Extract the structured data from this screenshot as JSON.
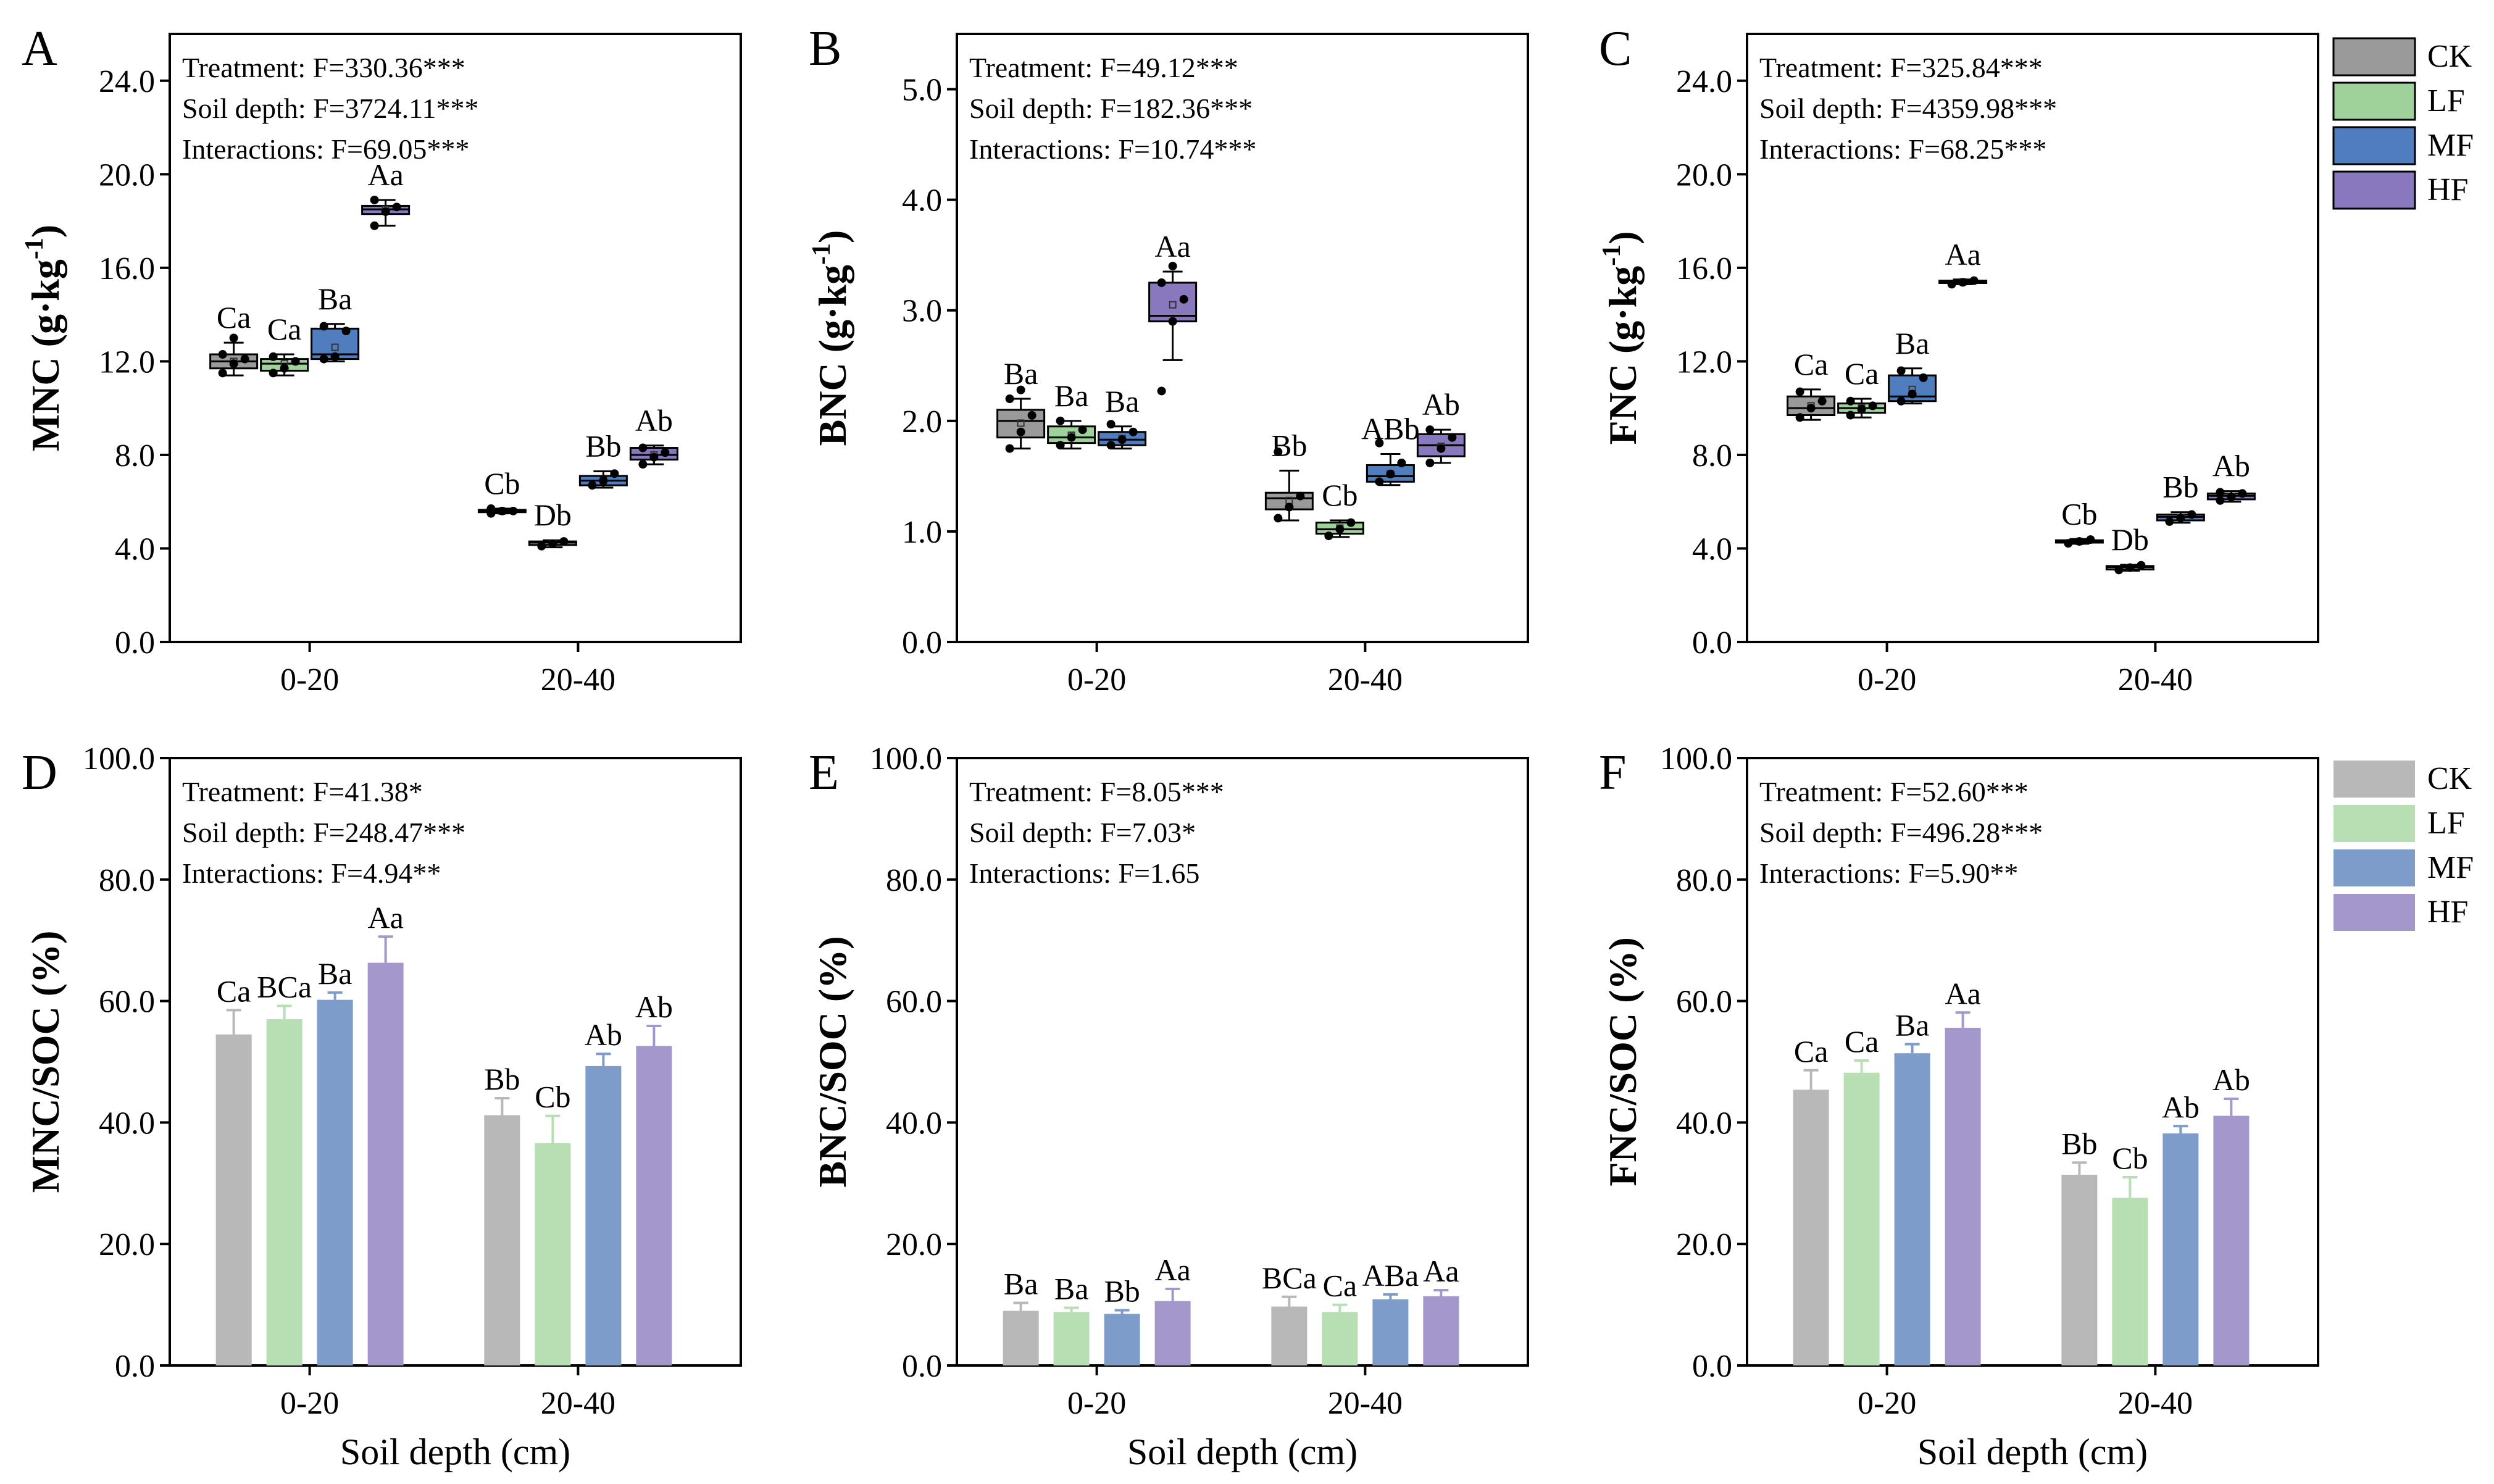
{
  "colors": {
    "box": {
      "CK": "#9a9a9a",
      "LF": "#9fd29a",
      "MF": "#4f7dbd",
      "HF": "#8a78bf"
    },
    "bar": {
      "CK": "#b8b8b8",
      "LF": "#b7dfb3",
      "MF": "#7e9cc9",
      "HF": "#a497cb"
    }
  },
  "legends": [
    {
      "kind": "box",
      "entries": [
        "CK",
        "LF",
        "MF",
        "HF"
      ]
    },
    {
      "kind": "bar",
      "entries": [
        "CK",
        "LF",
        "MF",
        "HF"
      ]
    }
  ],
  "chart_data": [
    {
      "id": "A",
      "type": "box",
      "ylabel": "MNC (g·kg",
      "ylabel_sup": "-1",
      "ylabel_end": ")",
      "xlabel": "",
      "ylim": [
        0,
        26
      ],
      "yticks": [
        "0.0",
        "4.0",
        "8.0",
        "12.0",
        "16.0",
        "20.0",
        "24.0"
      ],
      "categories": [
        "0-20",
        "20-40"
      ],
      "stats": [
        "Treatment: F=330.36***",
        "Soil depth: F=3724.11***",
        "Interactions: F=69.05***"
      ],
      "series": [
        {
          "name": "CK",
          "boxes": [
            {
              "min": 11.4,
              "q1": 11.7,
              "med": 12.0,
              "q3": 12.3,
              "max": 12.8,
              "mean": 12.0,
              "points": [
                11.5,
                11.9,
                12.1,
                12.3,
                13.0
              ],
              "letter": "Ca"
            },
            {
              "min": 5.5,
              "q1": 5.55,
              "med": 5.6,
              "q3": 5.65,
              "max": 5.7,
              "mean": 5.6,
              "points": [
                5.5,
                5.6,
                5.6,
                5.7
              ],
              "letter": "Cb"
            }
          ]
        },
        {
          "name": "LF",
          "boxes": [
            {
              "min": 11.4,
              "q1": 11.6,
              "med": 11.9,
              "q3": 12.1,
              "max": 12.3,
              "mean": 11.9,
              "points": [
                11.5,
                11.7,
                12.0,
                12.2
              ],
              "letter": "Ca"
            },
            {
              "min": 4.05,
              "q1": 4.15,
              "med": 4.25,
              "q3": 4.3,
              "max": 4.35,
              "mean": 4.2,
              "points": [
                4.1,
                4.2,
                4.3
              ],
              "letter": "Db"
            }
          ]
        },
        {
          "name": "MF",
          "boxes": [
            {
              "min": 12.0,
              "q1": 12.1,
              "med": 12.3,
              "q3": 13.4,
              "max": 13.6,
              "mean": 12.6,
              "points": [
                12.1,
                12.2,
                13.3,
                13.5
              ],
              "letter": "Ba"
            },
            {
              "min": 6.6,
              "q1": 6.7,
              "med": 6.9,
              "q3": 7.1,
              "max": 7.3,
              "mean": 6.9,
              "points": [
                6.7,
                6.9,
                7.2
              ],
              "letter": "Bb"
            }
          ]
        },
        {
          "name": "HF",
          "boxes": [
            {
              "min": 17.8,
              "q1": 18.3,
              "med": 18.5,
              "q3": 18.65,
              "max": 18.9,
              "mean": 18.5,
              "points": [
                17.8,
                18.4,
                18.6,
                18.9
              ],
              "letter": "Aa"
            },
            {
              "min": 7.6,
              "q1": 7.8,
              "med": 8.0,
              "q3": 8.3,
              "max": 8.4,
              "mean": 8.0,
              "points": [
                7.6,
                7.9,
                8.1,
                8.3
              ],
              "letter": "Ab"
            }
          ]
        }
      ]
    },
    {
      "id": "B",
      "type": "box",
      "ylabel": "BNC (g·kg",
      "ylabel_sup": "-1",
      "ylabel_end": ")",
      "xlabel": "",
      "ylim": [
        0,
        5.5
      ],
      "yticks": [
        "0.0",
        "1.0",
        "2.0",
        "3.0",
        "4.0",
        "5.0"
      ],
      "categories": [
        "0-20",
        "20-40"
      ],
      "stats": [
        "Treatment: F=49.12***",
        "Soil depth: F=182.36***",
        "Interactions: F=10.74***"
      ],
      "series": [
        {
          "name": "CK",
          "boxes": [
            {
              "min": 1.75,
              "q1": 1.85,
              "med": 2.0,
              "q3": 2.1,
              "max": 2.2,
              "mean": 1.98,
              "points": [
                1.75,
                1.9,
                2.05,
                2.2,
                2.28
              ],
              "letter": "Ba"
            },
            {
              "min": 1.1,
              "q1": 1.2,
              "med": 1.3,
              "q3": 1.35,
              "max": 1.55,
              "mean": 1.28,
              "points": [
                1.12,
                1.22,
                1.32,
                1.72
              ],
              "letter": "Bb"
            }
          ]
        },
        {
          "name": "LF",
          "boxes": [
            {
              "min": 1.75,
              "q1": 1.8,
              "med": 1.85,
              "q3": 1.95,
              "max": 2.0,
              "mean": 1.87,
              "points": [
                1.78,
                1.85,
                1.92,
                2.0
              ],
              "letter": "Ba"
            },
            {
              "min": 0.95,
              "q1": 0.98,
              "med": 1.02,
              "q3": 1.08,
              "max": 1.1,
              "mean": 1.03,
              "points": [
                0.96,
                1.02,
                1.08
              ],
              "letter": "Cb"
            }
          ]
        },
        {
          "name": "MF",
          "boxes": [
            {
              "min": 1.75,
              "q1": 1.78,
              "med": 1.83,
              "q3": 1.9,
              "max": 1.95,
              "mean": 1.84,
              "points": [
                1.78,
                1.83,
                1.9,
                1.97
              ],
              "letter": "Ba"
            },
            {
              "min": 1.42,
              "q1": 1.45,
              "med": 1.5,
              "q3": 1.6,
              "max": 1.7,
              "mean": 1.52,
              "points": [
                1.45,
                1.52,
                1.62,
                1.8
              ],
              "letter": "ABb"
            }
          ]
        },
        {
          "name": "HF",
          "boxes": [
            {
              "min": 2.55,
              "q1": 2.9,
              "med": 2.95,
              "q3": 3.25,
              "max": 3.35,
              "mean": 3.05,
              "points": [
                2.27,
                2.9,
                3.1,
                3.25,
                3.4
              ],
              "letter": "Aa"
            },
            {
              "min": 1.62,
              "q1": 1.68,
              "med": 1.78,
              "q3": 1.88,
              "max": 1.92,
              "mean": 1.77,
              "points": [
                1.62,
                1.75,
                1.85,
                1.92
              ],
              "letter": "Ab"
            }
          ]
        }
      ]
    },
    {
      "id": "C",
      "type": "box",
      "ylabel": "FNC (g·kg",
      "ylabel_sup": "-1",
      "ylabel_end": ")",
      "xlabel": "",
      "ylim": [
        0,
        26
      ],
      "yticks": [
        "0.0",
        "4.0",
        "8.0",
        "12.0",
        "16.0",
        "20.0",
        "24.0"
      ],
      "categories": [
        "0-20",
        "20-40"
      ],
      "stats": [
        "Treatment: F=325.84***",
        "Soil depth: F=4359.98***",
        "Interactions: F=68.25***"
      ],
      "series": [
        {
          "name": "CK",
          "boxes": [
            {
              "min": 9.5,
              "q1": 9.7,
              "med": 10.0,
              "q3": 10.5,
              "max": 10.8,
              "mean": 10.1,
              "points": [
                9.6,
                10.0,
                10.3,
                10.7
              ],
              "letter": "Ca"
            },
            {
              "min": 4.2,
              "q1": 4.25,
              "med": 4.3,
              "q3": 4.35,
              "max": 4.4,
              "mean": 4.3,
              "points": [
                4.22,
                4.3,
                4.38
              ],
              "letter": "Cb"
            }
          ]
        },
        {
          "name": "LF",
          "boxes": [
            {
              "min": 9.6,
              "q1": 9.8,
              "med": 10.0,
              "q3": 10.2,
              "max": 10.4,
              "mean": 10.0,
              "points": [
                9.7,
                9.95,
                10.1,
                10.3
              ],
              "letter": "Ca"
            },
            {
              "min": 3.05,
              "q1": 3.1,
              "med": 3.2,
              "q3": 3.25,
              "max": 3.3,
              "mean": 3.18,
              "points": [
                3.08,
                3.18,
                3.28
              ],
              "letter": "Db"
            }
          ]
        },
        {
          "name": "MF",
          "boxes": [
            {
              "min": 10.2,
              "q1": 10.3,
              "med": 10.5,
              "q3": 11.4,
              "max": 11.7,
              "mean": 10.8,
              "points": [
                10.3,
                10.6,
                11.3,
                11.6
              ],
              "letter": "Ba"
            },
            {
              "min": 5.1,
              "q1": 5.2,
              "med": 5.35,
              "q3": 5.45,
              "max": 5.55,
              "mean": 5.33,
              "points": [
                5.15,
                5.3,
                5.45
              ],
              "letter": "Bb"
            }
          ]
        },
        {
          "name": "HF",
          "boxes": [
            {
              "min": 15.3,
              "q1": 15.35,
              "med": 15.4,
              "q3": 15.45,
              "max": 15.5,
              "mean": 15.4,
              "points": [
                15.3,
                15.38,
                15.45
              ],
              "letter": "Aa"
            },
            {
              "min": 6.0,
              "q1": 6.1,
              "med": 6.25,
              "q3": 6.35,
              "max": 6.45,
              "mean": 6.23,
              "points": [
                6.05,
                6.2,
                6.35,
                6.4
              ],
              "letter": "Ab"
            }
          ]
        }
      ]
    },
    {
      "id": "D",
      "type": "bar",
      "ylabel": "MNC/SOC (%)",
      "xlabel": "Soil depth (cm)",
      "ylim": [
        0,
        100
      ],
      "yticks": [
        "0.0",
        "20.0",
        "40.0",
        "60.0",
        "80.0",
        "100.0"
      ],
      "categories": [
        "0-20",
        "20-40"
      ],
      "stats": [
        "Treatment: F=41.38*",
        "Soil depth: F=248.47***",
        "Interactions: F=4.94**"
      ],
      "series": [
        {
          "name": "CK",
          "values": [
            54.5,
            41.2
          ],
          "errors": [
            4.0,
            2.8
          ],
          "letters": [
            "Ca",
            "Bb"
          ]
        },
        {
          "name": "LF",
          "values": [
            57.0,
            36.6
          ],
          "errors": [
            2.2,
            4.5
          ],
          "letters": [
            "BCa",
            "Cb"
          ]
        },
        {
          "name": "MF",
          "values": [
            60.2,
            49.3
          ],
          "errors": [
            1.2,
            2.0
          ],
          "letters": [
            "Ba",
            "Ab"
          ]
        },
        {
          "name": "HF",
          "values": [
            66.3,
            52.6
          ],
          "errors": [
            4.3,
            3.3
          ],
          "letters": [
            "Aa",
            "Ab"
          ]
        }
      ]
    },
    {
      "id": "E",
      "type": "bar",
      "ylabel": "BNC/SOC (%)",
      "xlabel": "Soil depth (cm)",
      "ylim": [
        0,
        100
      ],
      "yticks": [
        "0.0",
        "20.0",
        "40.0",
        "60.0",
        "80.0",
        "100.0"
      ],
      "categories": [
        "0-20",
        "20-40"
      ],
      "stats": [
        "Treatment: F=8.05***",
        "Soil depth: F=7.03*",
        "Interactions: F=1.65"
      ],
      "series": [
        {
          "name": "CK",
          "values": [
            9.0,
            9.7
          ],
          "errors": [
            1.3,
            1.6
          ],
          "letters": [
            "Ba",
            "BCa"
          ]
        },
        {
          "name": "LF",
          "values": [
            8.8,
            8.8
          ],
          "errors": [
            0.7,
            1.2
          ],
          "letters": [
            "Ba",
            "Ca"
          ]
        },
        {
          "name": "MF",
          "values": [
            8.5,
            10.9
          ],
          "errors": [
            0.6,
            0.8
          ],
          "letters": [
            "Bb",
            "ABa"
          ]
        },
        {
          "name": "HF",
          "values": [
            10.6,
            11.4
          ],
          "errors": [
            2.0,
            1.0
          ],
          "letters": [
            "Aa",
            "Aa"
          ]
        }
      ]
    },
    {
      "id": "F",
      "type": "bar",
      "ylabel": "FNC/SOC (%)",
      "xlabel": "Soil depth (cm)",
      "ylim": [
        0,
        100
      ],
      "yticks": [
        "0.0",
        "20.0",
        "40.0",
        "60.0",
        "80.0",
        "100.0"
      ],
      "categories": [
        "0-20",
        "20-40"
      ],
      "stats": [
        "Treatment: F=52.60***",
        "Soil depth: F=496.28***",
        "Interactions: F=5.90**"
      ],
      "series": [
        {
          "name": "CK",
          "values": [
            45.4,
            31.4
          ],
          "errors": [
            3.2,
            2.0
          ],
          "letters": [
            "Ca",
            "Bb"
          ]
        },
        {
          "name": "LF",
          "values": [
            48.2,
            27.6
          ],
          "errors": [
            2.0,
            3.4
          ],
          "letters": [
            "Ca",
            "Cb"
          ]
        },
        {
          "name": "MF",
          "values": [
            51.4,
            38.2
          ],
          "errors": [
            1.5,
            1.2
          ],
          "letters": [
            "Ba",
            "Ab"
          ]
        },
        {
          "name": "HF",
          "values": [
            55.6,
            41.1
          ],
          "errors": [
            2.5,
            2.8
          ],
          "letters": [
            "Aa",
            "Ab"
          ]
        }
      ]
    }
  ]
}
